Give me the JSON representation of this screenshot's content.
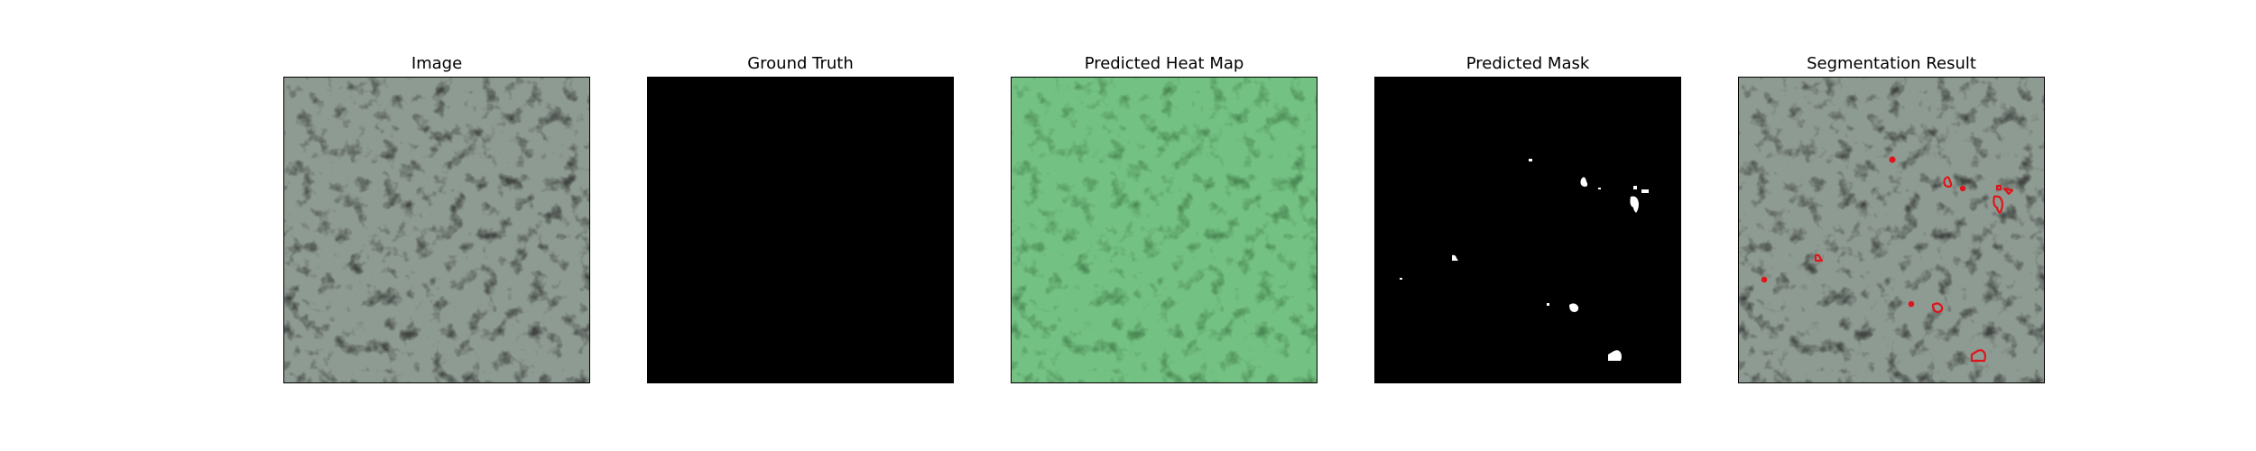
{
  "figure": {
    "panels": [
      {
        "id": "image",
        "title": "Image"
      },
      {
        "id": "ground-truth",
        "title": "Ground Truth"
      },
      {
        "id": "heatmap",
        "title": "Predicted Heat Map"
      },
      {
        "id": "mask",
        "title": "Predicted Mask"
      },
      {
        "id": "segmentation",
        "title": "Segmentation Result"
      }
    ]
  },
  "colors": {
    "background": "#ffffff",
    "texture_light": "#8e9b92",
    "texture_dark": "#424643",
    "heatmap_light": "#74c283",
    "heatmap_dark": "#4b8a55",
    "mask_background": "#000000",
    "mask_foreground": "#ffffff",
    "contour": "#e0141a"
  }
}
